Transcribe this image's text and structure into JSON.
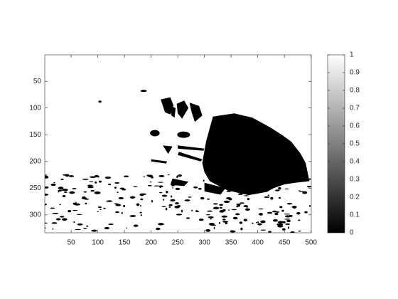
{
  "chart_data": {
    "type": "image",
    "xlim": [
      0.5,
      500.5
    ],
    "ylim": [
      0.5,
      333.5
    ],
    "y_reversed": true,
    "xticks": [
      50,
      100,
      150,
      200,
      250,
      300,
      350,
      400,
      450,
      500
    ],
    "yticks": [
      50,
      100,
      150,
      200,
      250,
      300
    ],
    "colorbar": {
      "colormap": "gray",
      "clim": [
        0,
        1
      ],
      "ticks": [
        0,
        0.1,
        0.2,
        0.3,
        0.4,
        0.5,
        0.6,
        0.7,
        0.8,
        0.9,
        1
      ]
    }
  }
}
